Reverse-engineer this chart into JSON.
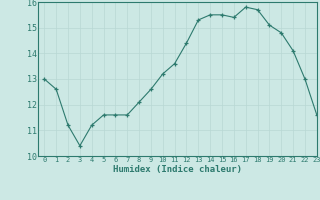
{
  "x": [
    0,
    1,
    2,
    3,
    4,
    5,
    6,
    7,
    8,
    9,
    10,
    11,
    12,
    13,
    14,
    15,
    16,
    17,
    18,
    19,
    20,
    21,
    22,
    23
  ],
  "y": [
    13.0,
    12.6,
    11.2,
    10.4,
    11.2,
    11.6,
    11.6,
    11.6,
    12.1,
    12.6,
    13.2,
    13.6,
    14.4,
    15.3,
    15.5,
    15.5,
    15.4,
    15.8,
    15.7,
    15.1,
    14.8,
    14.1,
    13.0,
    11.6
  ],
  "xlabel": "Humidex (Indice chaleur)",
  "ylim": [
    10,
    16
  ],
  "xlim": [
    -0.5,
    23
  ],
  "yticks": [
    10,
    11,
    12,
    13,
    14,
    15,
    16
  ],
  "xticks": [
    0,
    1,
    2,
    3,
    4,
    5,
    6,
    7,
    8,
    9,
    10,
    11,
    12,
    13,
    14,
    15,
    16,
    17,
    18,
    19,
    20,
    21,
    22,
    23
  ],
  "line_color": "#2d7a6e",
  "marker": "+",
  "bg_color": "#cce8e4",
  "grid_color": "#b8d8d4",
  "spine_color": "#2d7a6e",
  "tick_color": "#2d7a6e",
  "label_color": "#2d7a6e"
}
